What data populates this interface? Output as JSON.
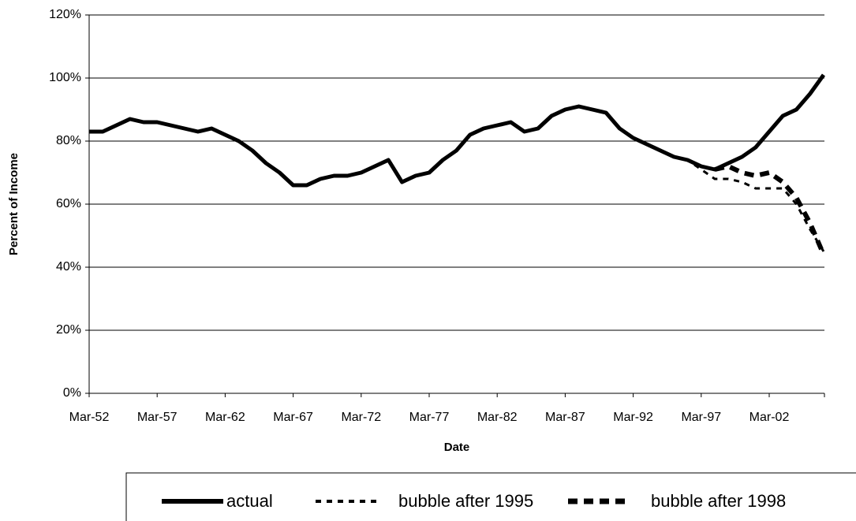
{
  "chart_data": {
    "type": "line",
    "x_label": "Date",
    "y_label": "Percent of Income",
    "categories": [
      "Mar-52",
      null,
      null,
      null,
      null,
      "Mar-57",
      null,
      null,
      null,
      null,
      "Mar-62",
      null,
      null,
      null,
      null,
      "Mar-67",
      null,
      null,
      null,
      null,
      "Mar-72",
      null,
      null,
      null,
      null,
      "Mar-77",
      null,
      null,
      null,
      null,
      "Mar-82",
      null,
      null,
      null,
      null,
      "Mar-87",
      null,
      null,
      null,
      null,
      "Mar-92",
      null,
      null,
      null,
      null,
      "Mar-97",
      null,
      null,
      null,
      null,
      "Mar-02",
      null,
      null,
      null,
      null
    ],
    "series": [
      {
        "name": "actual",
        "color": "#000000",
        "values": [
          83,
          83,
          85,
          87,
          86,
          86,
          85,
          84,
          83,
          84,
          82,
          80,
          77,
          73,
          70,
          66,
          66,
          68,
          69,
          69,
          70,
          72,
          74,
          67,
          69,
          70,
          74,
          77,
          82,
          84,
          85,
          86,
          83,
          84,
          88,
          90,
          91,
          90,
          89,
          84,
          81,
          79,
          77,
          75,
          74,
          72,
          71,
          73,
          75,
          78,
          83,
          88,
          90,
          95,
          101
        ]
      },
      {
        "name": "bubble after 1995",
        "color": "#000000",
        "values": [
          null,
          null,
          null,
          null,
          null,
          null,
          null,
          null,
          null,
          null,
          null,
          null,
          null,
          null,
          null,
          null,
          null,
          null,
          null,
          null,
          null,
          null,
          null,
          null,
          null,
          null,
          null,
          null,
          null,
          null,
          null,
          null,
          null,
          null,
          null,
          null,
          null,
          null,
          null,
          null,
          null,
          null,
          null,
          75,
          74,
          71,
          68,
          68,
          67,
          65,
          65,
          65,
          60,
          52,
          45
        ]
      },
      {
        "name": "bubble after 1998",
        "color": "#000000",
        "values": [
          null,
          null,
          null,
          null,
          null,
          null,
          null,
          null,
          null,
          null,
          null,
          null,
          null,
          null,
          null,
          null,
          null,
          null,
          null,
          null,
          null,
          null,
          null,
          null,
          null,
          null,
          null,
          null,
          null,
          null,
          null,
          null,
          null,
          null,
          null,
          null,
          null,
          null,
          null,
          null,
          null,
          null,
          null,
          null,
          null,
          null,
          71,
          72,
          70,
          69,
          70,
          67,
          62,
          54,
          44
        ]
      }
    ],
    "ylim": [
      0,
      120
    ],
    "yticks": [
      {
        "value": 0,
        "label": "0%"
      },
      {
        "value": 20,
        "label": "20%"
      },
      {
        "value": 40,
        "label": "40%"
      },
      {
        "value": 60,
        "label": "60%"
      },
      {
        "value": 80,
        "label": "80%"
      },
      {
        "value": 100,
        "label": "100%"
      },
      {
        "value": 120,
        "label": "120%"
      }
    ],
    "grid": true,
    "legend": "bottom"
  }
}
